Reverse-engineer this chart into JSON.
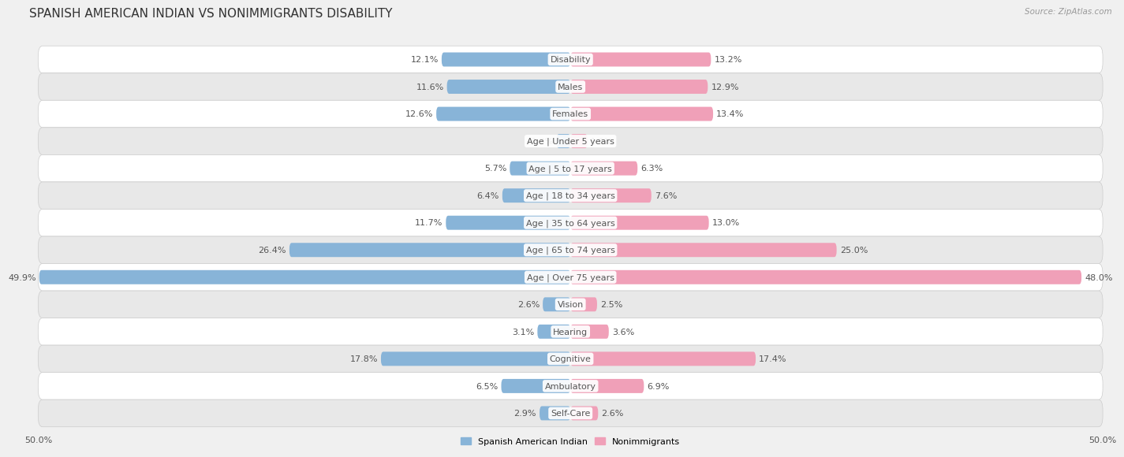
{
  "title": "SPANISH AMERICAN INDIAN VS NONIMMIGRANTS DISABILITY",
  "source": "Source: ZipAtlas.com",
  "categories": [
    "Disability",
    "Males",
    "Females",
    "Age | Under 5 years",
    "Age | 5 to 17 years",
    "Age | 18 to 34 years",
    "Age | 35 to 64 years",
    "Age | 65 to 74 years",
    "Age | Over 75 years",
    "Vision",
    "Hearing",
    "Cognitive",
    "Ambulatory",
    "Self-Care"
  ],
  "left_values": [
    12.1,
    11.6,
    12.6,
    1.3,
    5.7,
    6.4,
    11.7,
    26.4,
    49.9,
    2.6,
    3.1,
    17.8,
    6.5,
    2.9
  ],
  "right_values": [
    13.2,
    12.9,
    13.4,
    1.6,
    6.3,
    7.6,
    13.0,
    25.0,
    48.0,
    2.5,
    3.6,
    17.4,
    6.9,
    2.6
  ],
  "max_value": 50.0,
  "left_color": "#88b4d8",
  "right_color": "#f0a0b8",
  "left_label": "Spanish American Indian",
  "right_label": "Nonimmigrants",
  "bar_height": 0.52,
  "background_color": "#f0f0f0",
  "row_color_light": "#ffffff",
  "row_color_dark": "#e8e8e8",
  "title_fontsize": 11,
  "label_fontsize": 8,
  "value_fontsize": 8,
  "axis_label_fontsize": 8
}
